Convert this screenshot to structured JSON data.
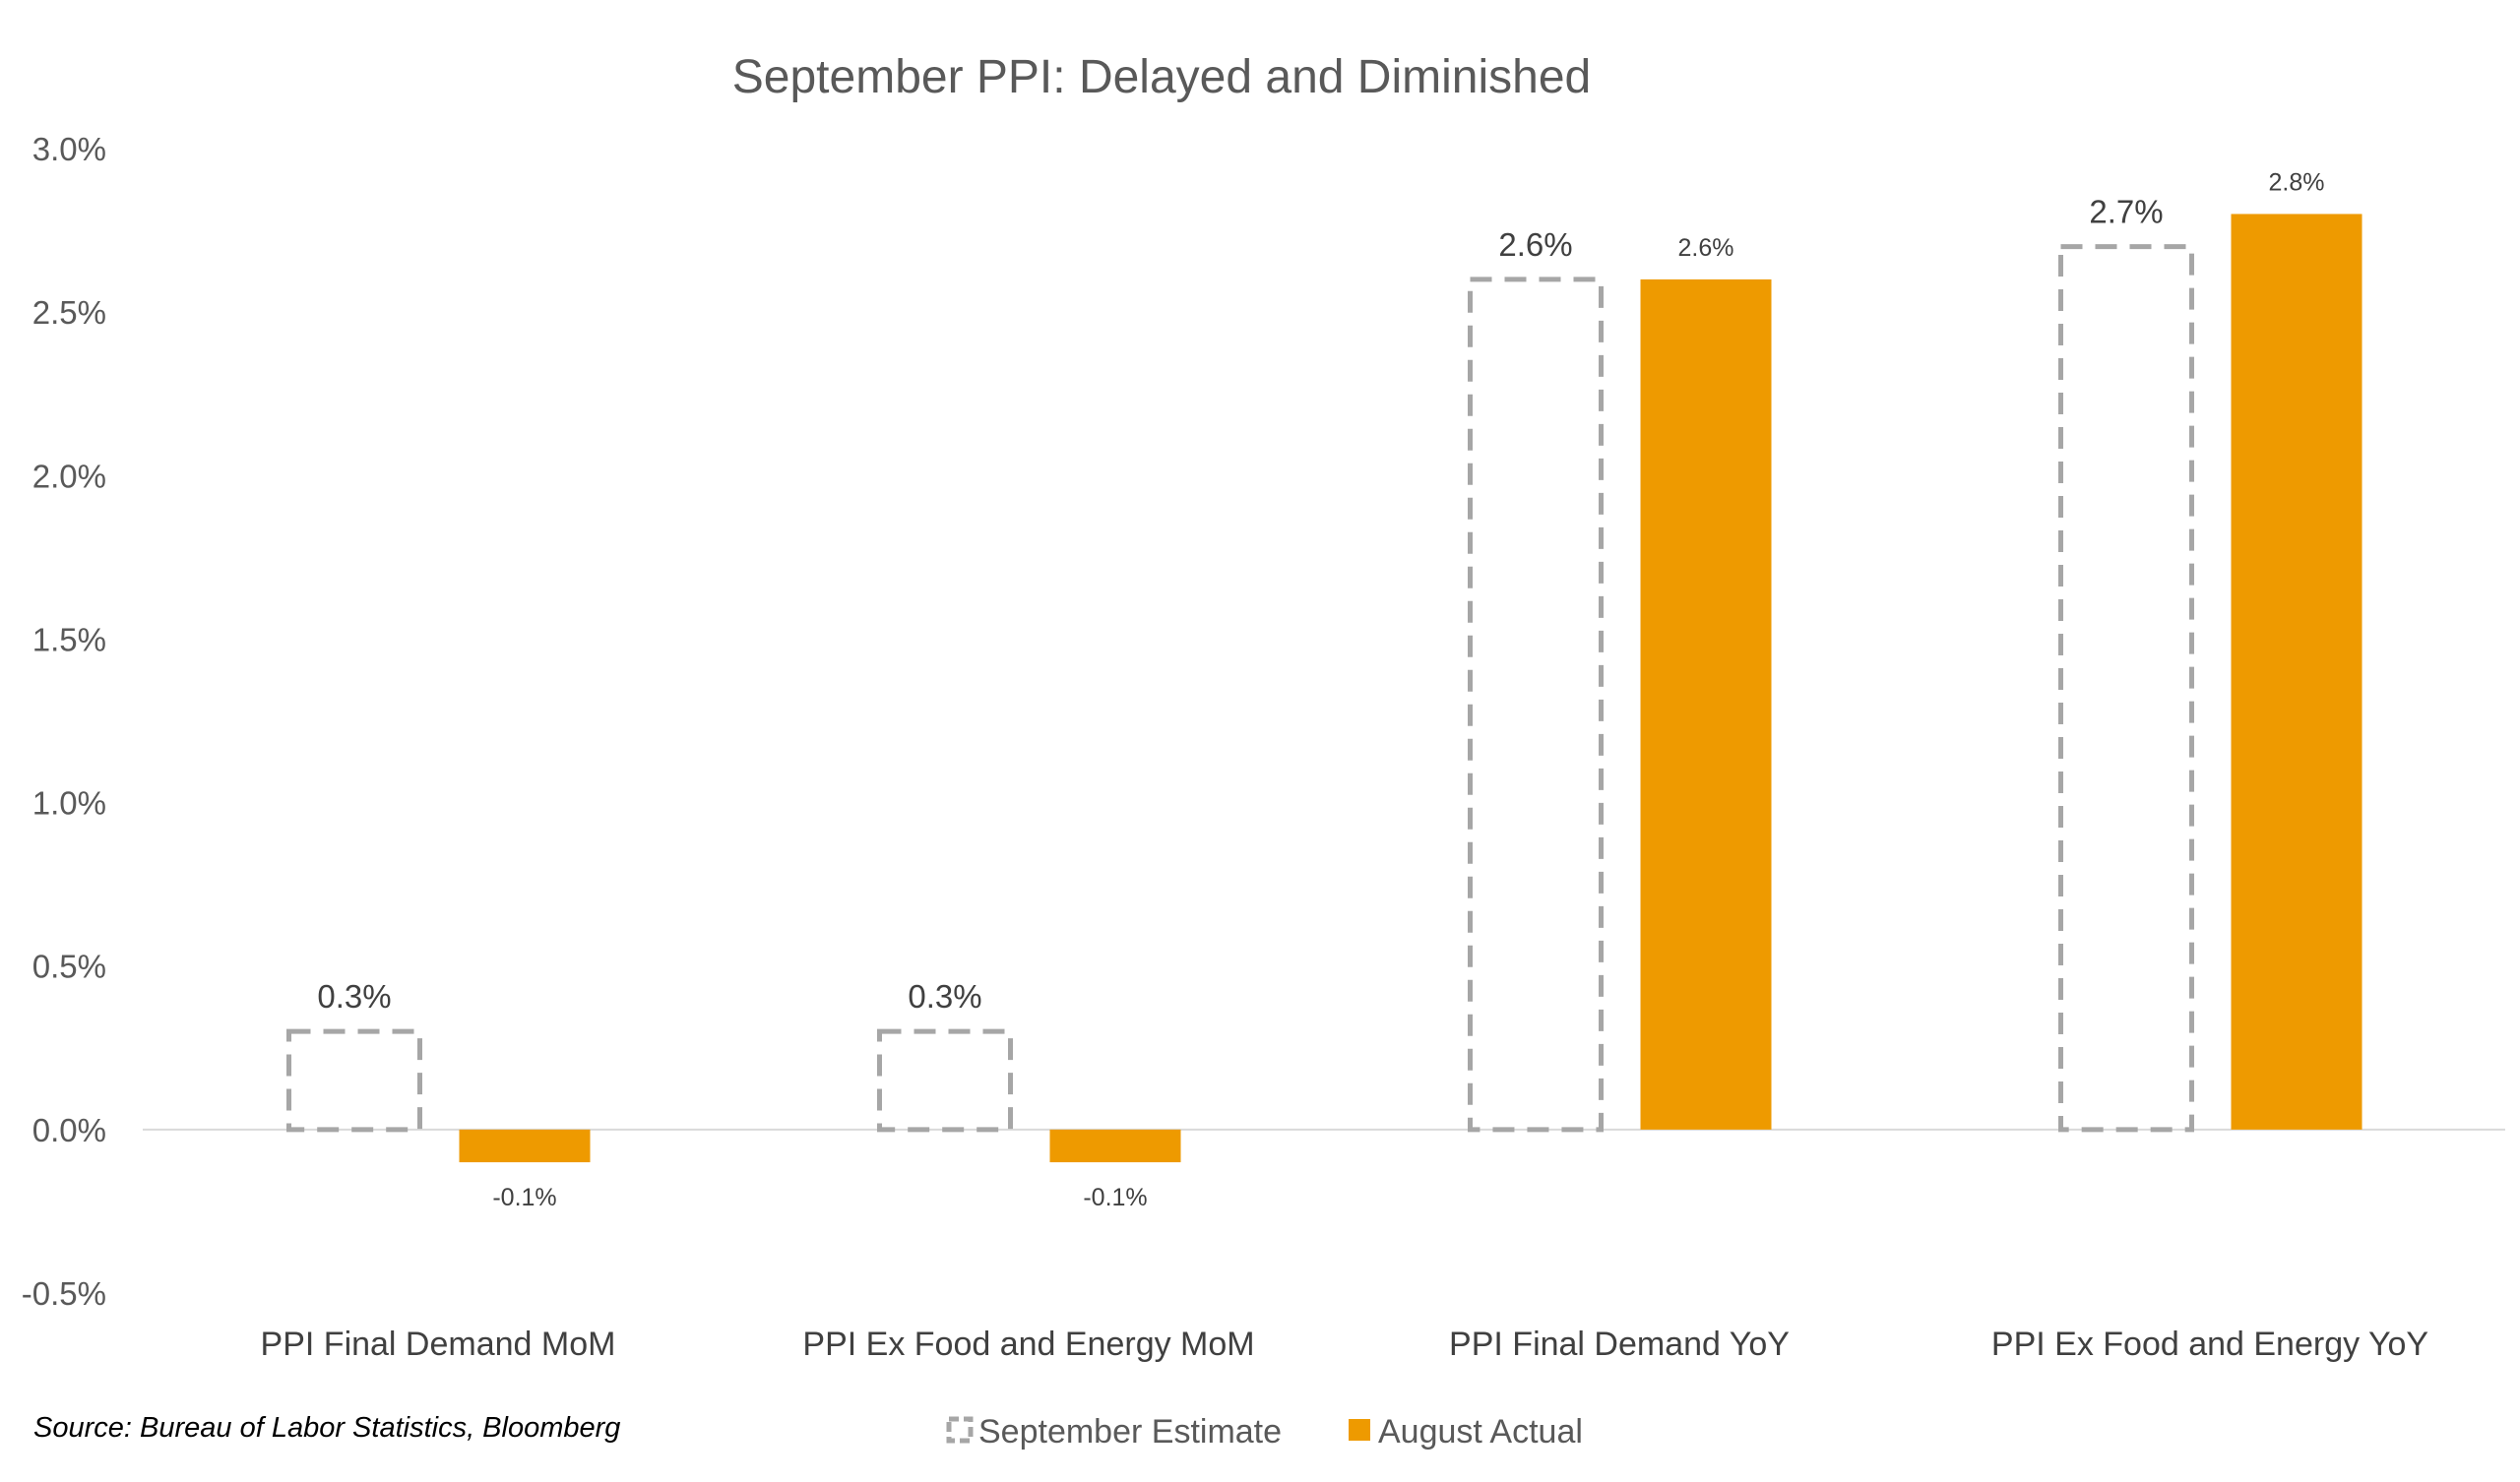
{
  "colors": {
    "estimate_stroke": "#a6a6a6",
    "actual_fill": "#ee9a00",
    "axis_line": "#d9d9d9",
    "text": "#595959"
  },
  "chart_data": {
    "type": "bar",
    "title": "September PPI: Delayed and Diminished",
    "categories": [
      "PPI Final Demand MoM",
      "PPI Ex Food and Energy MoM",
      "PPI Final Demand YoY",
      "PPI Ex Food and Energy YoY"
    ],
    "series": [
      {
        "name": "September Estimate",
        "style": "dashed-outline",
        "color": "#a6a6a6",
        "values": [
          0.3,
          0.3,
          2.6,
          2.7
        ],
        "labels": [
          "0.3%",
          "0.3%",
          "2.6%",
          "2.7%"
        ]
      },
      {
        "name": "August Actual",
        "style": "solid",
        "color": "#ee9a00",
        "values": [
          -0.1,
          -0.1,
          2.6,
          2.8
        ],
        "labels": [
          "-0.1%",
          "-0.1%",
          "2.6%",
          "2.8%"
        ]
      }
    ],
    "yticks": [
      "3.0%",
      "2.5%",
      "2.0%",
      "1.5%",
      "1.0%",
      "0.5%",
      "0.0%",
      "-0.5%"
    ],
    "ylim": [
      -0.5,
      3.0
    ],
    "ytick_step": 0.5,
    "grid": false,
    "legend_position": "bottom",
    "source": "Source: Bureau of Labor Statistics, Bloomberg"
  }
}
